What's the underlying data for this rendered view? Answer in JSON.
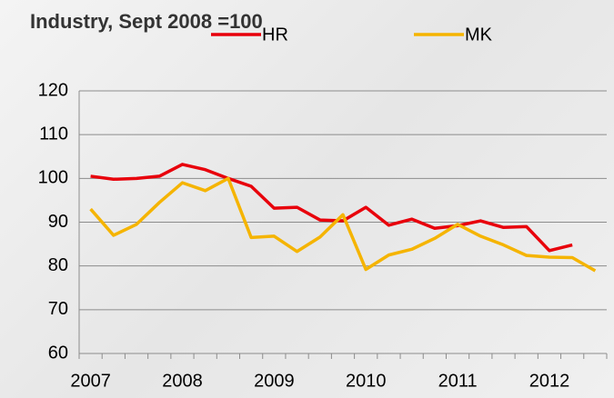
{
  "chart_data": {
    "type": "line",
    "title": "Industry, Sept 2008 =100",
    "categories": [
      "2007",
      null,
      null,
      null,
      "2008",
      null,
      null,
      null,
      "2009",
      null,
      null,
      null,
      "2010",
      null,
      null,
      null,
      "2011",
      null,
      null,
      null,
      "2012",
      null,
      null
    ],
    "series": [
      {
        "name": "HR",
        "color": "#e8000b",
        "values": [
          100.5,
          99.8,
          100,
          100.5,
          103.2,
          102,
          100,
          98.2,
          93.2,
          93.4,
          90.5,
          90.3,
          93.4,
          89.3,
          90.7,
          88.6,
          89.2,
          90.3,
          88.8,
          89,
          83.5,
          84.8,
          null
        ]
      },
      {
        "name": "MK",
        "color": "#f5b400",
        "values": [
          93,
          87,
          89.5,
          94.5,
          99,
          97.2,
          100,
          86.5,
          86.8,
          83.3,
          86.6,
          91.7,
          79.2,
          82.5,
          83.8,
          86.3,
          89.5,
          86.8,
          84.8,
          82.4,
          82,
          81.9,
          78.9
        ]
      }
    ],
    "ylim": [
      60,
      120
    ],
    "yticks": [
      60,
      70,
      80,
      90,
      100,
      110,
      120
    ],
    "grid": true
  }
}
